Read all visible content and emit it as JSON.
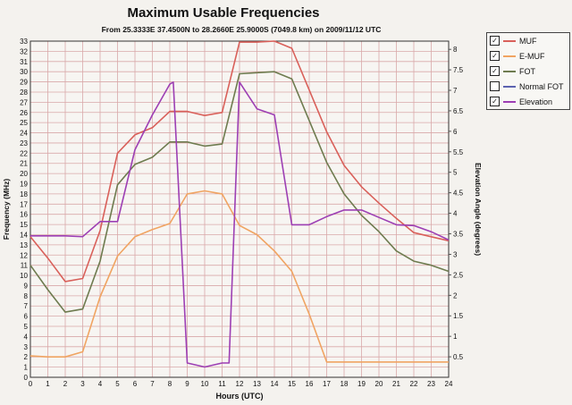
{
  "header": {
    "title": "Maximum Usable Frequencies",
    "subtitle": "From  25.3333E 37.4500N to  28.2660E 25.9000S (7049.8 km) on 2009/11/12 UTC"
  },
  "legend": {
    "items": [
      {
        "label": "MUF",
        "checked": true,
        "check_glyph": "✓",
        "color": "#d9605a"
      },
      {
        "label": "E-MUF",
        "checked": true,
        "check_glyph": "✓",
        "color": "#f0a462"
      },
      {
        "label": "FOT",
        "checked": true,
        "check_glyph": "✓",
        "color": "#6e7b4f"
      },
      {
        "label": "Normal FOT",
        "checked": false,
        "check_glyph": "",
        "color": "#5c62b0"
      },
      {
        "label": "Elevation",
        "checked": true,
        "check_glyph": "✓",
        "color": "#9d3fb4"
      }
    ]
  },
  "chart_data": {
    "type": "line",
    "xlabel": "Hours (UTC)",
    "ylabel": "Frequency (MHz)",
    "y2label": "Elevation Angle (degrees)",
    "xlim": [
      0,
      24
    ],
    "ylim": [
      0,
      33
    ],
    "y2lim": [
      0,
      8.2
    ],
    "x_ticks": [
      0,
      1,
      2,
      3,
      4,
      5,
      6,
      7,
      8,
      9,
      10,
      11,
      12,
      13,
      14,
      15,
      16,
      17,
      18,
      19,
      20,
      21,
      22,
      23,
      24
    ],
    "y_ticks": [
      0,
      1,
      2,
      3,
      4,
      5,
      6,
      7,
      8,
      9,
      10,
      11,
      12,
      13,
      14,
      15,
      16,
      17,
      18,
      19,
      20,
      21,
      22,
      23,
      24,
      25,
      26,
      27,
      28,
      29,
      30,
      31,
      32,
      33
    ],
    "y2_ticks": [
      "0.5",
      "1",
      "1.5",
      "2",
      "2.5",
      "3",
      "3.5",
      "4",
      "4.5",
      "5",
      "5.5",
      "6",
      "6.5",
      "7",
      "7.5",
      "8"
    ],
    "grid": true,
    "grid_color": "#d9a9a9",
    "series": [
      {
        "name": "MUF",
        "axis": "left",
        "color": "#d9605a",
        "x": [
          0,
          1,
          2,
          3,
          4,
          5,
          6,
          7,
          8,
          9,
          10,
          11,
          12,
          13,
          14,
          15,
          16,
          17,
          18,
          19,
          20,
          21,
          22,
          23,
          24
        ],
        "values": [
          13.8,
          11.7,
          9.4,
          9.7,
          14.4,
          22.0,
          23.8,
          24.5,
          26.1,
          26.1,
          25.7,
          26.0,
          32.9,
          32.9,
          33.0,
          32.3,
          28.2,
          24.1,
          20.8,
          18.7,
          17.1,
          15.6,
          14.2,
          13.8,
          13.4
        ]
      },
      {
        "name": "E-MUF",
        "axis": "left",
        "color": "#f0a462",
        "x": [
          0,
          1,
          2,
          3,
          4,
          5,
          6,
          7,
          8,
          9,
          10,
          11,
          12,
          13,
          14,
          15,
          16,
          17,
          18,
          19,
          20,
          21,
          22,
          23,
          24
        ],
        "values": [
          2.1,
          2.0,
          2.0,
          2.5,
          7.9,
          11.9,
          13.8,
          14.5,
          15.1,
          18.0,
          18.3,
          18.0,
          14.9,
          14.0,
          12.4,
          10.4,
          6.2,
          1.5,
          1.5,
          1.5,
          1.5,
          1.5,
          1.5,
          1.5,
          1.5
        ]
      },
      {
        "name": "FOT",
        "axis": "left",
        "color": "#6e7b4f",
        "x": [
          0,
          1,
          2,
          3,
          4,
          5,
          6,
          7,
          8,
          9,
          10,
          11,
          12,
          13,
          14,
          15,
          16,
          17,
          18,
          19,
          20,
          21,
          22,
          23,
          24
        ],
        "values": [
          11.0,
          8.6,
          6.4,
          6.7,
          11.4,
          18.9,
          20.9,
          21.6,
          23.1,
          23.1,
          22.7,
          22.9,
          29.8,
          29.9,
          30.0,
          29.3,
          25.2,
          21.1,
          18.0,
          15.9,
          14.3,
          12.4,
          11.4,
          11.0,
          10.4
        ]
      },
      {
        "name": "Elevation",
        "axis": "right",
        "color": "#9d3fb4",
        "x": [
          0,
          1,
          2,
          3,
          4,
          5,
          6,
          7,
          8,
          8.2,
          9,
          10,
          11,
          11.4,
          12,
          13,
          14,
          15,
          16,
          17,
          18,
          19,
          20,
          21,
          22,
          23,
          24
        ],
        "values": [
          3.45,
          3.45,
          3.45,
          3.43,
          3.8,
          3.8,
          5.55,
          6.4,
          7.15,
          7.2,
          0.35,
          0.25,
          0.35,
          0.35,
          7.2,
          6.55,
          6.4,
          3.72,
          3.72,
          3.92,
          4.08,
          4.08,
          3.9,
          3.72,
          3.7,
          3.55,
          3.35
        ]
      }
    ]
  }
}
